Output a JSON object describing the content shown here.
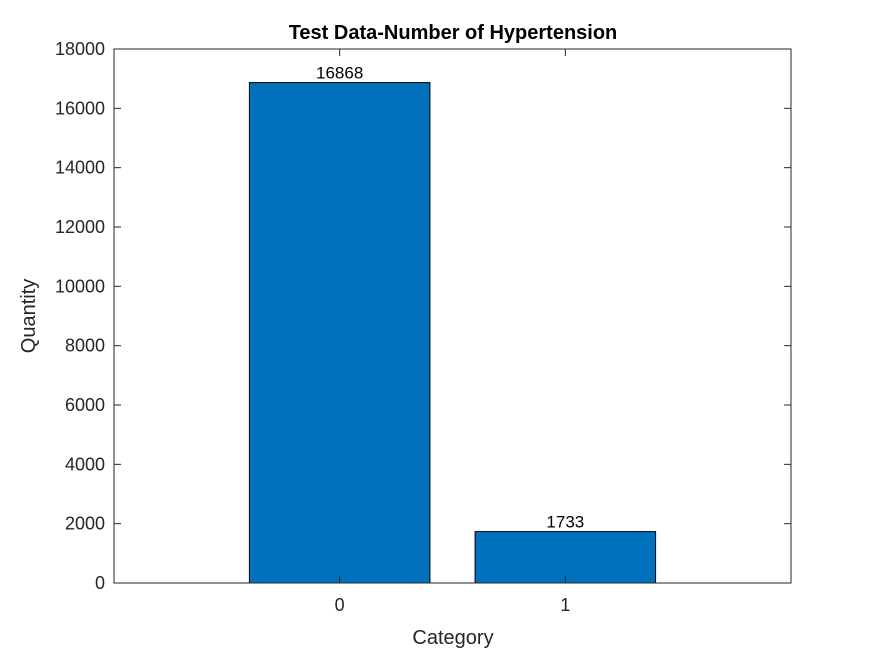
{
  "chart_data": {
    "type": "bar",
    "title": "Test Data-Number of Hypertension",
    "xlabel": "Category",
    "ylabel": "Quantity",
    "categories": [
      "0",
      "1"
    ],
    "values": [
      16868,
      1733
    ],
    "data_labels": [
      "16868",
      "1733"
    ],
    "xlim": [
      -1,
      2
    ],
    "ylim": [
      0,
      18000
    ],
    "yticks": [
      0,
      2000,
      4000,
      6000,
      8000,
      10000,
      12000,
      14000,
      16000,
      18000
    ],
    "ytick_labels": [
      "0",
      "2000",
      "4000",
      "6000",
      "8000",
      "10000",
      "12000",
      "14000",
      "16000",
      "18000"
    ],
    "grid": false,
    "bar_color": "#0072BD"
  }
}
